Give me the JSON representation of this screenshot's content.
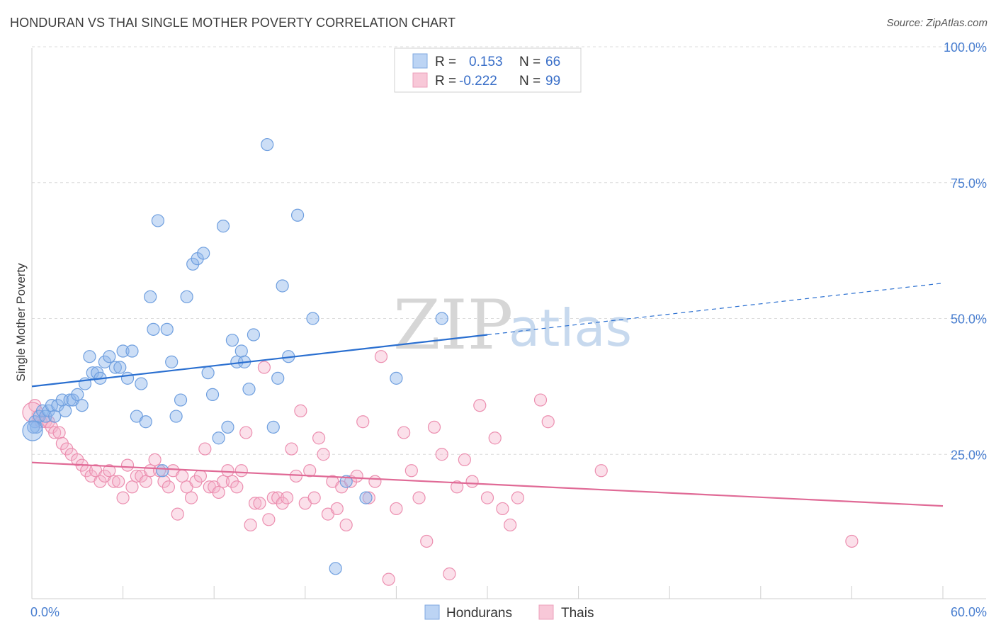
{
  "header": {
    "title": "HONDURAN VS THAI SINGLE MOTHER POVERTY CORRELATION CHART",
    "source": "Source: ZipAtlas.com"
  },
  "legend": {
    "r_label": "R =",
    "n_label": "N =",
    "series": [
      {
        "r": "0.153",
        "n": "66",
        "color": "#8fb6ea"
      },
      {
        "r": "-0.222",
        "n": "99",
        "color": "#f0a6c0"
      }
    ]
  },
  "watermark": {
    "zip": "ZIP",
    "atlas": "atlas"
  },
  "chart_data": {
    "type": "scatter",
    "title": "HONDURAN VS THAI SINGLE MOTHER POVERTY CORRELATION CHART",
    "xlabel": "",
    "ylabel": "Single Mother Poverty",
    "xlim": [
      0,
      60
    ],
    "ylim": [
      0,
      100
    ],
    "x_tick_labels": [
      "0.0%",
      "60.0%"
    ],
    "y_tick_labels": [
      "25.0%",
      "50.0%",
      "75.0%",
      "100.0%"
    ],
    "y_ticks": [
      25,
      50,
      75,
      100
    ],
    "grid": true,
    "legend_position": "bottom-center",
    "colors": {
      "Hondurans": "#5b92dd",
      "Thais": "#e97aa0",
      "blue_line": "#2a6fd0",
      "pink_line": "#e06a96"
    },
    "series": [
      {
        "name": "Hondurans",
        "points": [
          [
            0.2,
            31
          ],
          [
            0.3,
            30
          ],
          [
            0.5,
            32
          ],
          [
            0.7,
            33
          ],
          [
            0.9,
            32
          ],
          [
            1.1,
            33
          ],
          [
            1.3,
            34
          ],
          [
            1.5,
            32
          ],
          [
            1.7,
            34
          ],
          [
            2.0,
            35
          ],
          [
            2.2,
            33
          ],
          [
            2.5,
            35
          ],
          [
            2.7,
            35
          ],
          [
            3.0,
            36
          ],
          [
            3.3,
            34
          ],
          [
            3.5,
            38
          ],
          [
            3.8,
            43
          ],
          [
            4.0,
            40
          ],
          [
            4.3,
            40
          ],
          [
            4.5,
            39
          ],
          [
            4.8,
            42
          ],
          [
            5.1,
            43
          ],
          [
            5.5,
            41
          ],
          [
            5.8,
            41
          ],
          [
            6.0,
            44
          ],
          [
            6.3,
            39
          ],
          [
            6.6,
            44
          ],
          [
            6.9,
            32
          ],
          [
            7.2,
            38
          ],
          [
            7.5,
            31
          ],
          [
            7.8,
            54
          ],
          [
            8.0,
            48
          ],
          [
            8.3,
            68
          ],
          [
            8.6,
            22
          ],
          [
            8.9,
            48
          ],
          [
            9.2,
            42
          ],
          [
            9.5,
            32
          ],
          [
            9.8,
            35
          ],
          [
            10.2,
            54
          ],
          [
            10.6,
            60
          ],
          [
            10.9,
            61
          ],
          [
            11.3,
            62
          ],
          [
            11.6,
            40
          ],
          [
            11.9,
            36
          ],
          [
            12.3,
            28
          ],
          [
            12.6,
            67
          ],
          [
            12.9,
            30
          ],
          [
            13.2,
            46
          ],
          [
            13.5,
            42
          ],
          [
            13.8,
            44
          ],
          [
            14.0,
            42
          ],
          [
            14.3,
            37
          ],
          [
            14.6,
            47
          ],
          [
            15.5,
            82
          ],
          [
            15.9,
            30
          ],
          [
            16.2,
            39
          ],
          [
            16.5,
            56
          ],
          [
            16.9,
            43
          ],
          [
            17.5,
            69
          ],
          [
            18.5,
            50
          ],
          [
            20.0,
            4
          ],
          [
            20.7,
            20
          ],
          [
            22.0,
            17
          ],
          [
            24.0,
            39
          ],
          [
            27.0,
            50
          ],
          [
            0.1,
            30
          ]
        ],
        "trend": {
          "x": [
            0,
            30
          ],
          "y": [
            37.5,
            47
          ],
          "dashed_to": [
            60,
            56.5
          ]
        }
      },
      {
        "name": "Thais",
        "points": [
          [
            0.2,
            34
          ],
          [
            0.4,
            32
          ],
          [
            0.6,
            31
          ],
          [
            0.9,
            31
          ],
          [
            1.1,
            31
          ],
          [
            1.3,
            30
          ],
          [
            1.5,
            29
          ],
          [
            1.8,
            29
          ],
          [
            2.0,
            27
          ],
          [
            2.3,
            26
          ],
          [
            2.6,
            25
          ],
          [
            3.0,
            24
          ],
          [
            3.3,
            23
          ],
          [
            3.6,
            22
          ],
          [
            3.9,
            21
          ],
          [
            4.2,
            22
          ],
          [
            4.5,
            20
          ],
          [
            4.8,
            21
          ],
          [
            5.1,
            22
          ],
          [
            5.4,
            20
          ],
          [
            5.7,
            20
          ],
          [
            6.0,
            17
          ],
          [
            6.3,
            23
          ],
          [
            6.6,
            19
          ],
          [
            6.9,
            21
          ],
          [
            7.2,
            21
          ],
          [
            7.5,
            20
          ],
          [
            7.8,
            22
          ],
          [
            8.1,
            24
          ],
          [
            8.4,
            22
          ],
          [
            8.7,
            20
          ],
          [
            9.0,
            19
          ],
          [
            9.3,
            22
          ],
          [
            9.6,
            14
          ],
          [
            9.9,
            21
          ],
          [
            10.2,
            19
          ],
          [
            10.5,
            17
          ],
          [
            10.8,
            20
          ],
          [
            11.1,
            21
          ],
          [
            11.4,
            26
          ],
          [
            11.7,
            19
          ],
          [
            12.0,
            19
          ],
          [
            12.3,
            18
          ],
          [
            12.6,
            20
          ],
          [
            12.9,
            22
          ],
          [
            13.2,
            20
          ],
          [
            13.5,
            19
          ],
          [
            13.8,
            22
          ],
          [
            14.1,
            29
          ],
          [
            14.4,
            12
          ],
          [
            14.7,
            16
          ],
          [
            15.0,
            16
          ],
          [
            15.3,
            41
          ],
          [
            15.6,
            13
          ],
          [
            15.9,
            17
          ],
          [
            16.2,
            17
          ],
          [
            16.5,
            16
          ],
          [
            16.8,
            17
          ],
          [
            17.1,
            26
          ],
          [
            17.4,
            21
          ],
          [
            17.7,
            33
          ],
          [
            18.0,
            16
          ],
          [
            18.3,
            22
          ],
          [
            18.6,
            17
          ],
          [
            18.9,
            28
          ],
          [
            19.2,
            25
          ],
          [
            19.5,
            14
          ],
          [
            19.8,
            20
          ],
          [
            20.1,
            15
          ],
          [
            20.4,
            19
          ],
          [
            20.7,
            12
          ],
          [
            21.0,
            20
          ],
          [
            21.4,
            21
          ],
          [
            21.8,
            31
          ],
          [
            22.2,
            17
          ],
          [
            22.6,
            20
          ],
          [
            23.0,
            43
          ],
          [
            23.5,
            2
          ],
          [
            24.0,
            15
          ],
          [
            24.5,
            29
          ],
          [
            25.0,
            22
          ],
          [
            25.5,
            17
          ],
          [
            26.0,
            9
          ],
          [
            26.5,
            30
          ],
          [
            27.0,
            25
          ],
          [
            27.5,
            3
          ],
          [
            28.0,
            19
          ],
          [
            28.5,
            24
          ],
          [
            29.0,
            20
          ],
          [
            29.5,
            34
          ],
          [
            30.0,
            17
          ],
          [
            30.5,
            28
          ],
          [
            31.0,
            15
          ],
          [
            31.5,
            12
          ],
          [
            32.0,
            17
          ],
          [
            33.5,
            35
          ],
          [
            34.0,
            31
          ],
          [
            37.5,
            22
          ],
          [
            54.0,
            9
          ]
        ],
        "trend": {
          "x": [
            0,
            60
          ],
          "y": [
            23.5,
            15.5
          ]
        }
      }
    ]
  }
}
